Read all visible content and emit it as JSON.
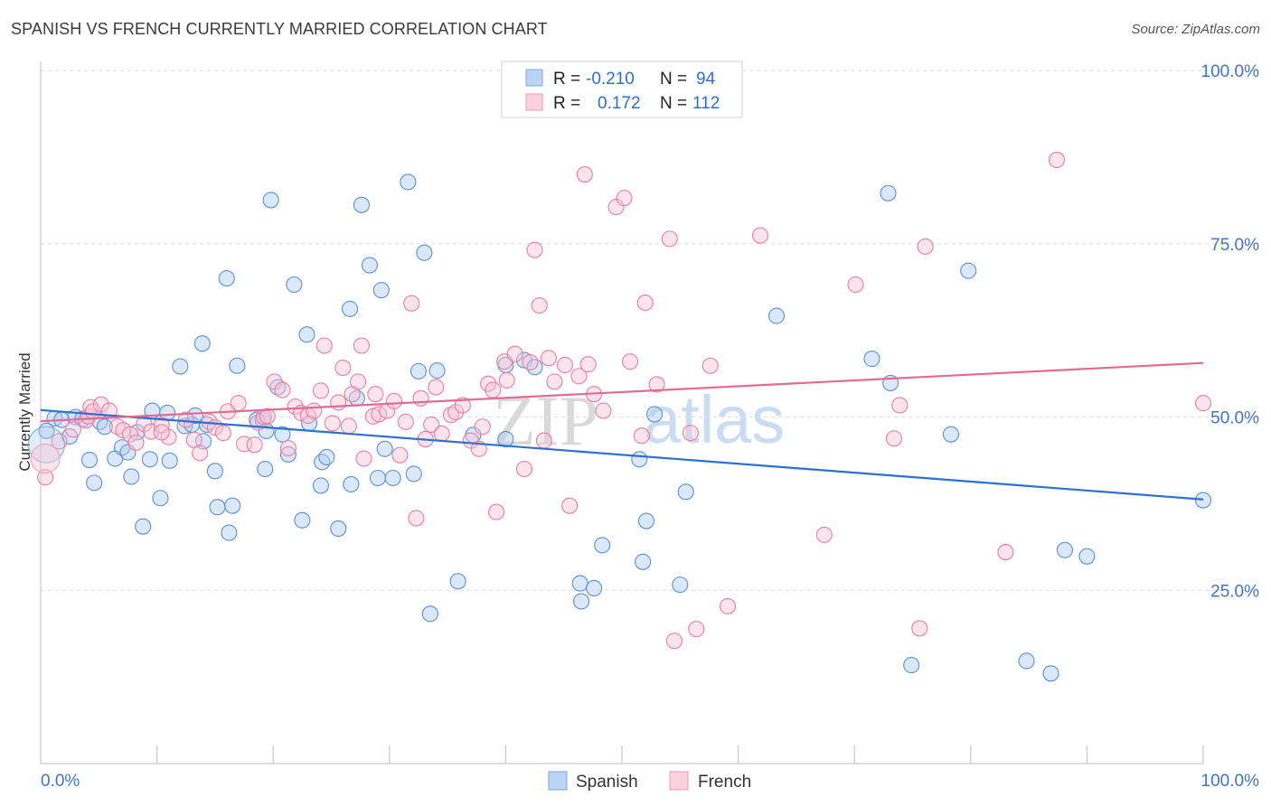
{
  "chart_data": {
    "type": "scatter",
    "title": "SPANISH VS FRENCH CURRENTLY MARRIED CORRELATION CHART",
    "source": "Source: ZipAtlas.com",
    "xlabel": "",
    "ylabel": "Currently Married",
    "xlim": [
      0,
      100
    ],
    "ylim": [
      0,
      100
    ],
    "x_tick_labels": [
      {
        "value": 0,
        "label": "0.0%"
      },
      {
        "value": 100,
        "label": "100.0%"
      }
    ],
    "y_tick_labels": [
      {
        "value": 100,
        "label": "100.0%"
      },
      {
        "value": 75,
        "label": "75.0%"
      },
      {
        "value": 50,
        "label": "50.0%"
      },
      {
        "value": 25,
        "label": "25.0%"
      }
    ],
    "grid": "horizontal dashed",
    "legend_placement": "bottom-center",
    "watermark": {
      "part1": "ZIP",
      "part2": "atlas"
    },
    "stats_box": [
      {
        "series": "Spanish",
        "r_label": "R =",
        "r": "-0.210",
        "n_label": "N =",
        "n": "94"
      },
      {
        "series": "French",
        "r_label": "R =",
        "r": "0.172",
        "n_label": "N =",
        "n": "112"
      }
    ],
    "series": [
      {
        "name": "Spanish",
        "color": "#5b8fd6",
        "fill": "#aecbf2",
        "trend": {
          "x": [
            0,
            100
          ],
          "y": [
            51.0,
            38.1
          ],
          "color": "#2f6fd0"
        },
        "points": [
          [
            0.5,
            48
          ],
          [
            1.2,
            49.8
          ],
          [
            1.8,
            49.6
          ],
          [
            2.5,
            47.2
          ],
          [
            3,
            50
          ],
          [
            3.6,
            49.7
          ],
          [
            4.2,
            43.8
          ],
          [
            4.6,
            40.5
          ],
          [
            5.1,
            49.3
          ],
          [
            5.5,
            48.6
          ],
          [
            6.4,
            44
          ],
          [
            7,
            45.6
          ],
          [
            7.5,
            44.9
          ],
          [
            7.8,
            41.4
          ],
          [
            8.3,
            47.8
          ],
          [
            8.8,
            34.2
          ],
          [
            9.4,
            43.9
          ],
          [
            9.6,
            50.9
          ],
          [
            10.3,
            38.3
          ],
          [
            10.9,
            50.6
          ],
          [
            11.1,
            43.7
          ],
          [
            12,
            57.3
          ],
          [
            12.4,
            48.7
          ],
          [
            13,
            48.9
          ],
          [
            13.3,
            50.2
          ],
          [
            14,
            46.5
          ],
          [
            14.3,
            48.9
          ],
          [
            15,
            42.2
          ],
          [
            15.2,
            37
          ],
          [
            13.9,
            60.6
          ],
          [
            16.2,
            33.3
          ],
          [
            16.5,
            37.2
          ],
          [
            16.9,
            57.4
          ],
          [
            16,
            70
          ],
          [
            18.6,
            49.6
          ],
          [
            19.1,
            49.6
          ],
          [
            19.3,
            42.5
          ],
          [
            19.4,
            48
          ],
          [
            19.8,
            81.3
          ],
          [
            20.4,
            54.3
          ],
          [
            20.8,
            47.5
          ],
          [
            21.3,
            44.6
          ],
          [
            21.8,
            69.1
          ],
          [
            22.5,
            35.1
          ],
          [
            22.9,
            61.9
          ],
          [
            23.1,
            49.1
          ],
          [
            24.1,
            40.1
          ],
          [
            24.2,
            43.5
          ],
          [
            24.6,
            44.2
          ],
          [
            25.6,
            33.9
          ],
          [
            26.6,
            65.6
          ],
          [
            26.7,
            40.3
          ],
          [
            27.2,
            52.7
          ],
          [
            27.6,
            80.6
          ],
          [
            28.3,
            71.9
          ],
          [
            29,
            41.2
          ],
          [
            29.3,
            68.3
          ],
          [
            29.6,
            45.4
          ],
          [
            30.3,
            41.2
          ],
          [
            31.6,
            83.9
          ],
          [
            32.1,
            41.8
          ],
          [
            32.5,
            56.6
          ],
          [
            33,
            73.7
          ],
          [
            33.5,
            21.6
          ],
          [
            34.1,
            56.7
          ],
          [
            35.9,
            26.3
          ],
          [
            37.2,
            47.4
          ],
          [
            40,
            46.8
          ],
          [
            40,
            57.5
          ],
          [
            41.6,
            58.2
          ],
          [
            42.5,
            57.2
          ],
          [
            46.4,
            26
          ],
          [
            46.5,
            23.4
          ],
          [
            47.6,
            25.3
          ],
          [
            48.3,
            31.5
          ],
          [
            51.5,
            43.9
          ],
          [
            51.8,
            29.1
          ],
          [
            52.1,
            35
          ],
          [
            52.8,
            50.4
          ],
          [
            55,
            25.8
          ],
          [
            55.5,
            39.2
          ],
          [
            63.3,
            64.6
          ],
          [
            71.5,
            58.4
          ],
          [
            73.1,
            54.9
          ],
          [
            72.9,
            82.3
          ],
          [
            74.9,
            14.2
          ],
          [
            78.3,
            47.5
          ],
          [
            79.8,
            71.1
          ],
          [
            84.8,
            14.8
          ],
          [
            86.9,
            13
          ],
          [
            88.1,
            30.8
          ],
          [
            90,
            29.9
          ],
          [
            100,
            38
          ]
        ]
      },
      {
        "name": "French",
        "color": "#e77fa0",
        "fill": "#f7c3d2",
        "trend": {
          "x": [
            0,
            100
          ],
          "y": [
            49.4,
            57.8
          ],
          "color": "#e26a93"
        },
        "points": [
          [
            0.4,
            41.3
          ],
          [
            1.6,
            46.5
          ],
          [
            2.8,
            48.2
          ],
          [
            3.9,
            49.5
          ],
          [
            4.1,
            50.1
          ],
          [
            4.3,
            51.4
          ],
          [
            4.5,
            50.8
          ],
          [
            5.2,
            51.8
          ],
          [
            5.9,
            50.9
          ],
          [
            6.6,
            48.6
          ],
          [
            7.1,
            48.1
          ],
          [
            7.7,
            47.5
          ],
          [
            8.2,
            46.3
          ],
          [
            8.9,
            49
          ],
          [
            9.5,
            47.9
          ],
          [
            10.4,
            48.8
          ],
          [
            11,
            47.1
          ],
          [
            10.4,
            47.8
          ],
          [
            12.5,
            49.6
          ],
          [
            13.2,
            46.7
          ],
          [
            13.7,
            44.8
          ],
          [
            14.5,
            49.3
          ],
          [
            15,
            48.5
          ],
          [
            15.7,
            47.7
          ],
          [
            16.1,
            50.8
          ],
          [
            17,
            52
          ],
          [
            17.5,
            46.1
          ],
          [
            18.4,
            46
          ],
          [
            18.7,
            49.2
          ],
          [
            19.2,
            50
          ],
          [
            19.5,
            50.1
          ],
          [
            20.1,
            55.1
          ],
          [
            20.8,
            53.9
          ],
          [
            21.3,
            45.5
          ],
          [
            21.9,
            51.5
          ],
          [
            22.4,
            50.6
          ],
          [
            23,
            50.2
          ],
          [
            23.5,
            50.9
          ],
          [
            24.1,
            53.8
          ],
          [
            24.4,
            60.3
          ],
          [
            25.1,
            49.1
          ],
          [
            25.6,
            52.1
          ],
          [
            26,
            57.1
          ],
          [
            26.5,
            48.7
          ],
          [
            26.8,
            53.3
          ],
          [
            27.3,
            55.1
          ],
          [
            27.6,
            60.3
          ],
          [
            27.8,
            44
          ],
          [
            28.8,
            53.3
          ],
          [
            28.6,
            50.1
          ],
          [
            29.1,
            50.4
          ],
          [
            29.8,
            50.9
          ],
          [
            30.4,
            52.3
          ],
          [
            30.9,
            44.5
          ],
          [
            31.4,
            49.3
          ],
          [
            31.9,
            66.4
          ],
          [
            32.3,
            35.4
          ],
          [
            32.7,
            52.7
          ],
          [
            33.1,
            46.8
          ],
          [
            33.6,
            48.9
          ],
          [
            34,
            54.3
          ],
          [
            34.5,
            47.6
          ],
          [
            35.3,
            50.3
          ],
          [
            35.7,
            50.7
          ],
          [
            36.3,
            51.7
          ],
          [
            37,
            46.6
          ],
          [
            37.7,
            45.4
          ],
          [
            38,
            48.6
          ],
          [
            38.5,
            54.8
          ],
          [
            38.9,
            53.9
          ],
          [
            39.2,
            36.3
          ],
          [
            39.9,
            58
          ],
          [
            40.1,
            55.3
          ],
          [
            40.8,
            59.1
          ],
          [
            41.6,
            42.5
          ],
          [
            42.1,
            57.9
          ],
          [
            42.5,
            74.1
          ],
          [
            42.9,
            66.1
          ],
          [
            43.3,
            46.6
          ],
          [
            43.7,
            58.5
          ],
          [
            44.2,
            55.1
          ],
          [
            45.1,
            57.5
          ],
          [
            45.5,
            37.2
          ],
          [
            46.3,
            55.9
          ],
          [
            46.8,
            85
          ],
          [
            47.1,
            57.6
          ],
          [
            47.6,
            53.3
          ],
          [
            48.4,
            50.9
          ],
          [
            49.5,
            80.3
          ],
          [
            50.2,
            81.6
          ],
          [
            50.7,
            58
          ],
          [
            51.7,
            47.3
          ],
          [
            52,
            66.5
          ],
          [
            53,
            54.7
          ],
          [
            54.1,
            75.7
          ],
          [
            54.5,
            17.7
          ],
          [
            55.9,
            47.7
          ],
          [
            56.4,
            19.4
          ],
          [
            57.6,
            57.4
          ],
          [
            59.1,
            22.7
          ],
          [
            61.9,
            76.2
          ],
          [
            67.4,
            33
          ],
          [
            70.1,
            69.1
          ],
          [
            73.4,
            46.9
          ],
          [
            73.9,
            51.7
          ],
          [
            75.6,
            19.5
          ],
          [
            76.1,
            74.6
          ],
          [
            83,
            30.5
          ],
          [
            87.4,
            87.1
          ],
          [
            100,
            52
          ]
        ]
      }
    ]
  }
}
